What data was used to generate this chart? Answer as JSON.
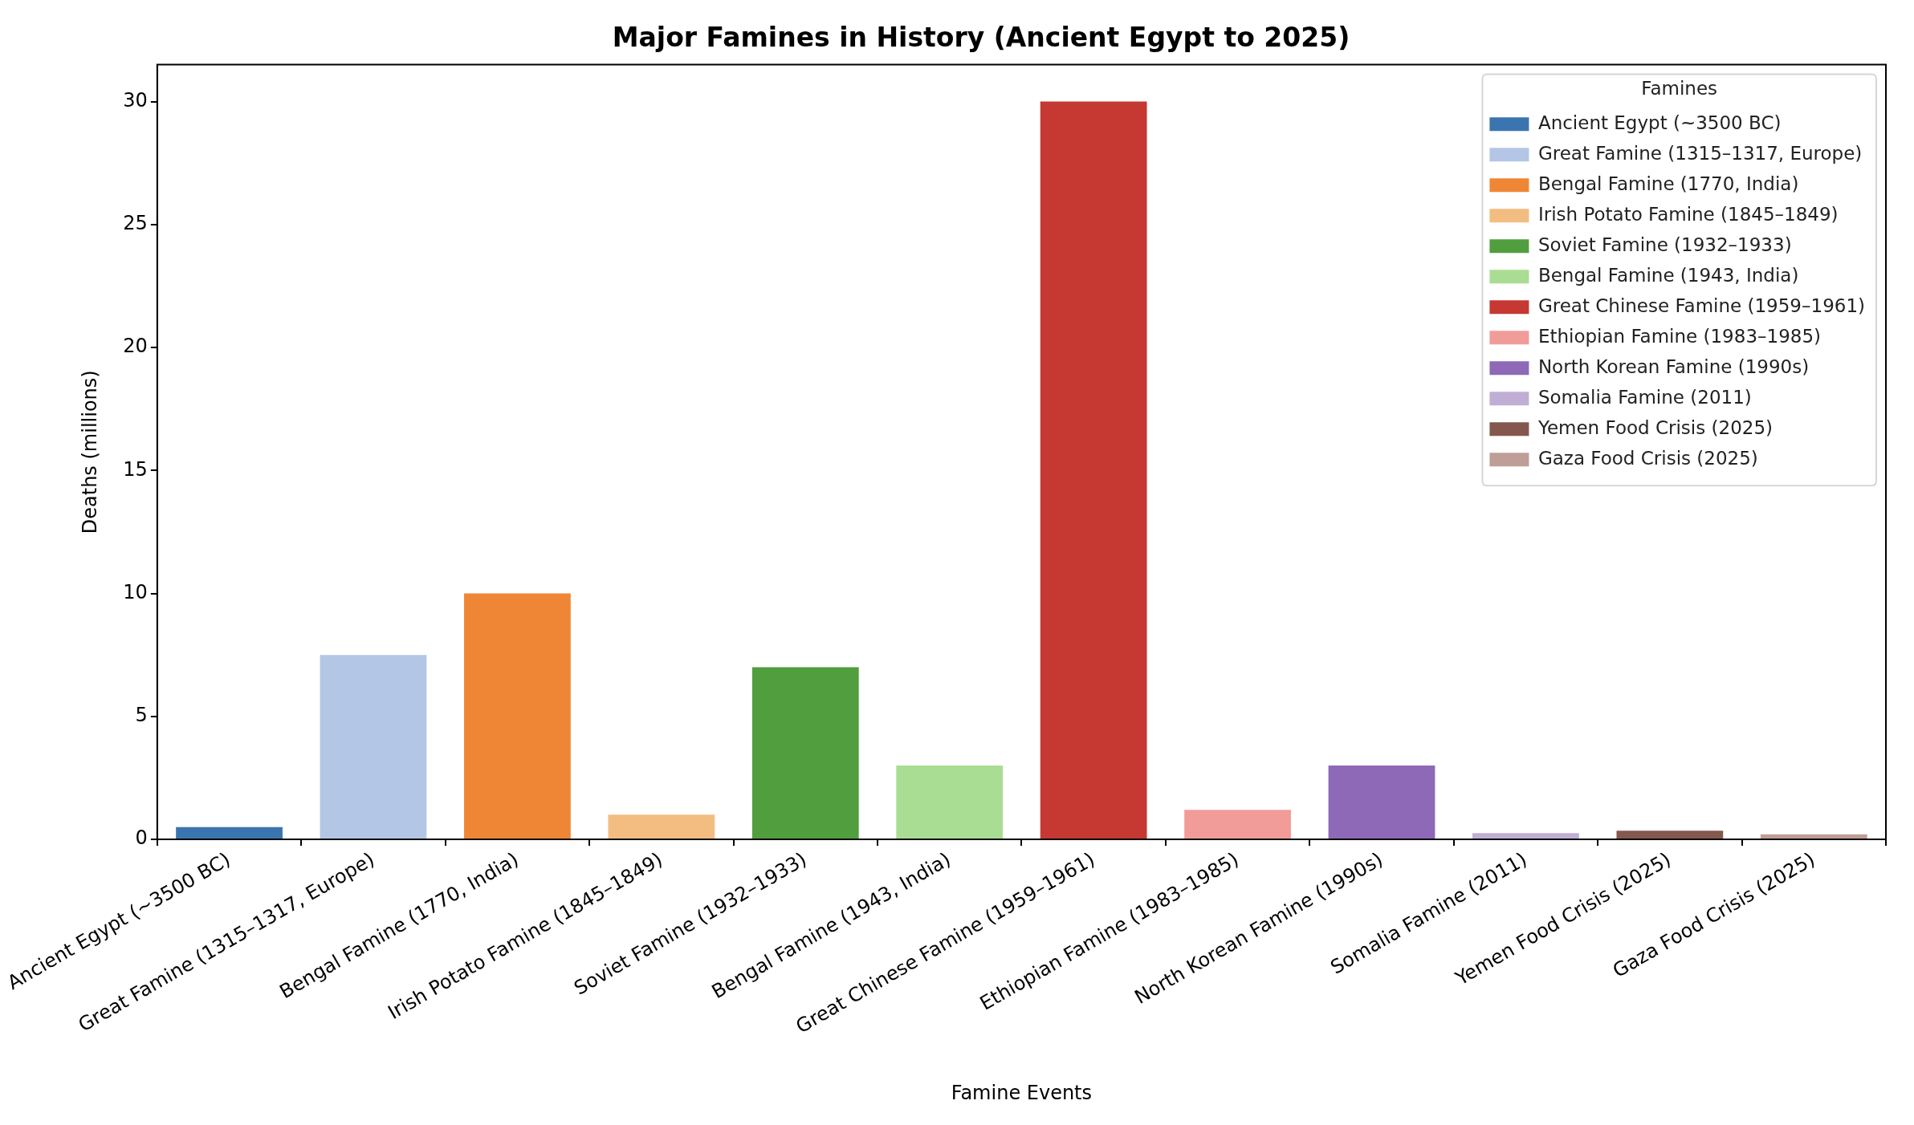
{
  "chart_data": {
    "type": "bar",
    "title": "Major Famines in History (Ancient Egypt to 2025)",
    "xlabel": "Famine Events",
    "ylabel": "Deaths (millions)",
    "legend_title": "Famines",
    "legend": "top right",
    "categories": [
      "Ancient Egypt (~3500 BC)",
      "Great Famine (1315–1317, Europe)",
      "Bengal Famine (1770, India)",
      "Irish Potato Famine (1845–1849)",
      "Soviet Famine (1932–1933)",
      "Bengal Famine (1943, India)",
      "Great Chinese Famine (1959–1961)",
      "Ethiopian Famine (1983–1985)",
      "North Korean Famine (1990s)",
      "Somalia Famine (2011)",
      "Yemen Food Crisis (2025)",
      "Gaza Food Crisis (2025)"
    ],
    "series": [
      {
        "name": "Ancient Egypt (~3500 BC)",
        "color": "#3b75af",
        "values": [
          0.5,
          null,
          null,
          null,
          null,
          null,
          null,
          null,
          null,
          null,
          null,
          null
        ]
      },
      {
        "name": "Great Famine (1315–1317, Europe)",
        "color": "#b3c6e5",
        "values": [
          null,
          7.5,
          null,
          null,
          null,
          null,
          null,
          null,
          null,
          null,
          null,
          null
        ]
      },
      {
        "name": "Bengal Famine (1770, India)",
        "color": "#ef8636",
        "values": [
          null,
          null,
          10,
          null,
          null,
          null,
          null,
          null,
          null,
          null,
          null,
          null
        ]
      },
      {
        "name": "Irish Potato Famine (1845–1849)",
        "color": "#f3bd81",
        "values": [
          null,
          null,
          null,
          1,
          null,
          null,
          null,
          null,
          null,
          null,
          null,
          null
        ]
      },
      {
        "name": "Soviet Famine (1932–1933)",
        "color": "#519e3e",
        "values": [
          null,
          null,
          null,
          null,
          7,
          null,
          null,
          null,
          null,
          null,
          null,
          null
        ]
      },
      {
        "name": "Bengal Famine (1943, India)",
        "color": "#a9dd93",
        "values": [
          null,
          null,
          null,
          null,
          null,
          3,
          null,
          null,
          null,
          null,
          null,
          null
        ]
      },
      {
        "name": "Great Chinese Famine (1959–1961)",
        "color": "#c53932",
        "values": [
          null,
          null,
          null,
          null,
          null,
          null,
          30,
          null,
          null,
          null,
          null,
          null
        ]
      },
      {
        "name": "Ethiopian Famine (1983–1985)",
        "color": "#f19c98",
        "values": [
          null,
          null,
          null,
          null,
          null,
          null,
          null,
          1.2,
          null,
          null,
          null,
          null
        ]
      },
      {
        "name": "North Korean Famine (1990s)",
        "color": "#8d69b8",
        "values": [
          null,
          null,
          null,
          null,
          null,
          null,
          null,
          null,
          3,
          null,
          null,
          null
        ]
      },
      {
        "name": "Somalia Famine (2011)",
        "color": "#c1aed5",
        "values": [
          null,
          null,
          null,
          null,
          null,
          null,
          null,
          null,
          null,
          0.25,
          null,
          null
        ]
      },
      {
        "name": "Yemen Food Crisis (2025)",
        "color": "#84584e",
        "values": [
          null,
          null,
          null,
          null,
          null,
          null,
          null,
          null,
          null,
          null,
          0.35,
          null
        ]
      },
      {
        "name": "Gaza Food Crisis (2025)",
        "color": "#be9e96",
        "values": [
          null,
          null,
          null,
          null,
          null,
          null,
          null,
          null,
          null,
          null,
          null,
          0.2
        ]
      }
    ],
    "ylim": [
      0,
      31.5
    ],
    "yticks": [
      0,
      5,
      10,
      15,
      20,
      25,
      30
    ]
  }
}
